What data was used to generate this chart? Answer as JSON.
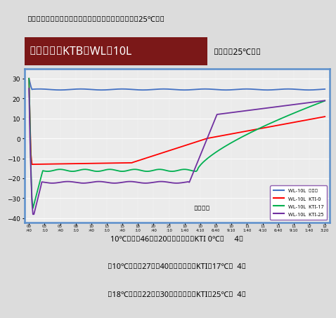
{
  "title": "「キープサーモアイス」と併用した場合の保冷能力（25℃時）",
  "box_label": "ボックス：KTB－WL－10L",
  "room_label": "恒温室：25℃設定",
  "xlabel": "経過時間",
  "ylabel_ticks": [
    30,
    20,
    10,
    0,
    -10,
    -20,
    -30,
    -40
  ],
  "ylim": [
    -42,
    35
  ],
  "legend_labels": [
    "WL-10L  恒温室",
    "WL-10L  KTI-0",
    "WL-10L  KTI-17",
    "WL-10L  KTI-25"
  ],
  "line_colors": [
    "#4472C4",
    "#FF0000",
    "#00B050",
    "#7030A0"
  ],
  "annotations": [
    "10℃以下を46時間20分維持・・・KTI 0℃用     4個",
    "－10℃以下を27時間40分維持・・・KTI－17℃用  4個",
    "－18℃以下を22時間30分維持・・・KTI－25℃用  4個"
  ],
  "bg_color": "#DCDCDC",
  "plot_bg": "#EBEBEB",
  "header_bg": "#7B1818",
  "outer_border": "#5B8FCC"
}
